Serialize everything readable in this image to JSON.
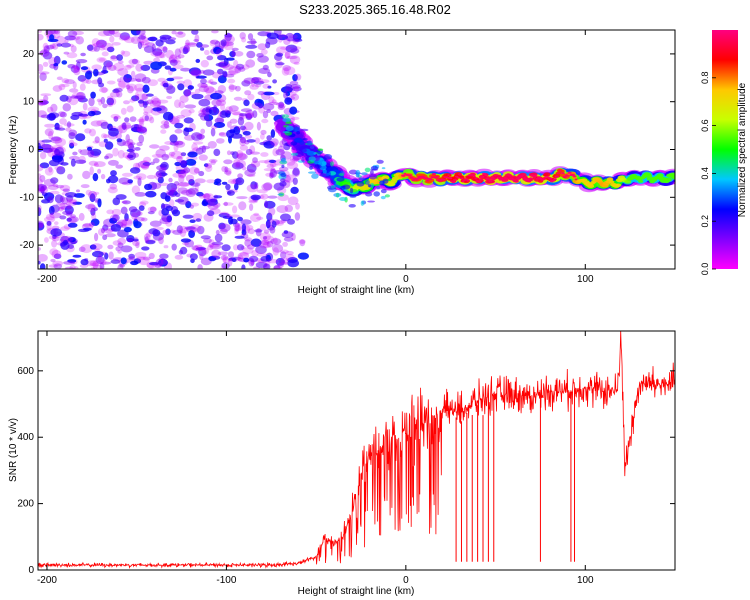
{
  "figure_title": "S233.2025.365.16.48.R02",
  "chart_data": [
    {
      "type": "heatmap",
      "xlabel": "Height of straight line (km)",
      "ylabel": "Frequency (Hz)",
      "xlim": [
        -205,
        150
      ],
      "ylim": [
        -25,
        25
      ],
      "x_ticks": [
        -200,
        -100,
        0,
        100
      ],
      "y_ticks": [
        -20,
        -10,
        0,
        10,
        20
      ],
      "x_tick_labels": [
        "-200",
        "-100",
        "0",
        "100"
      ],
      "y_tick_labels": [
        "-20",
        "-10",
        "0",
        "10",
        "20"
      ],
      "noise_region_x": [
        -205,
        -60
      ],
      "ridge": {
        "x": [
          -68,
          -62,
          -56,
          -50,
          -44,
          -38,
          -32,
          -26,
          -20,
          -14,
          -8,
          -2,
          5,
          15,
          30,
          50,
          70,
          80,
          88,
          95,
          100,
          110,
          118,
          125,
          135,
          150
        ],
        "y": [
          5,
          3,
          0,
          -2,
          -4,
          -6,
          -8,
          -8,
          -7,
          -6,
          -7,
          -5,
          -6,
          -6,
          -6,
          -6,
          -6,
          -6,
          -5,
          -6,
          -7,
          -7,
          -7,
          -6,
          -6,
          -6
        ],
        "amplitude": [
          0.3,
          0.35,
          0.4,
          0.4,
          0.45,
          0.5,
          0.6,
          0.7,
          0.75,
          0.8,
          0.7,
          0.8,
          0.85,
          0.85,
          0.9,
          0.95,
          0.95,
          0.9,
          0.85,
          0.8,
          0.75,
          0.8,
          0.75,
          0.6,
          0.6,
          0.6
        ]
      },
      "colorbar": {
        "label": "Normalized spectral amplitude",
        "range": [
          0,
          1
        ],
        "ticks": [
          0.0,
          0.2,
          0.4,
          0.6,
          0.8
        ],
        "tick_labels": [
          "0.0",
          "0.2",
          "0.4",
          "0.6",
          "0.8"
        ],
        "colors": [
          "#ff00ff",
          "#8000ff",
          "#0000ff",
          "#00c8ff",
          "#00ff00",
          "#c8ff00",
          "#ffc800",
          "#ff0000",
          "#ff0080"
        ]
      }
    },
    {
      "type": "line",
      "xlabel": "Height of straight line (km)",
      "ylabel": "SNR (10 * v/v)",
      "xlim": [
        -205,
        150
      ],
      "ylim": [
        0,
        720
      ],
      "x_ticks": [
        -200,
        -100,
        0,
        100
      ],
      "y_ticks": [
        0,
        200,
        400,
        600
      ],
      "x_tick_labels": [
        "-200",
        "-100",
        "0",
        "100"
      ],
      "y_tick_labels": [
        "0",
        "200",
        "400",
        "600"
      ],
      "color": "#ff0000",
      "series": [
        {
          "name": "SNR",
          "x": [
            -205,
            -150,
            -100,
            -75,
            -60,
            -50,
            -45,
            -40,
            -35,
            -30,
            -25,
            -20,
            -15,
            -10,
            -5,
            0,
            10,
            20,
            30,
            40,
            50,
            60,
            70,
            80,
            90,
            100,
            110,
            118,
            120,
            122,
            130,
            140,
            150
          ],
          "y": [
            15,
            15,
            15,
            15,
            20,
            40,
            100,
            80,
            100,
            180,
            270,
            340,
            370,
            400,
            390,
            420,
            440,
            480,
            480,
            510,
            530,
            530,
            520,
            540,
            540,
            550,
            540,
            540,
            720,
            300,
            560,
            560,
            560
          ],
          "dropouts_x": [
            28,
            31,
            34,
            37,
            40,
            43,
            46,
            49,
            75,
            92,
            94
          ]
        }
      ]
    }
  ]
}
